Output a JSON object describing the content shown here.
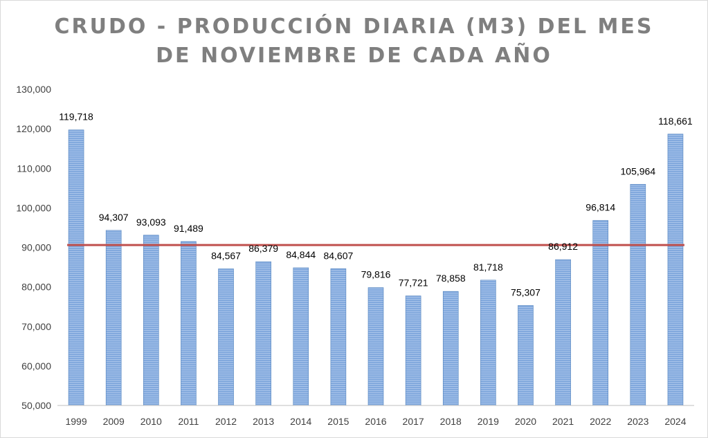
{
  "chart_data": {
    "type": "bar",
    "title_line1": "CRUDO - PRODUCCIÓN DIARIA (M3) DEL MES",
    "title_line2": "DE NOVIEMBRE DE CADA AÑO",
    "categories": [
      "1999",
      "2009",
      "2010",
      "2011",
      "2012",
      "2013",
      "2014",
      "2015",
      "2016",
      "2017",
      "2018",
      "2019",
      "2020",
      "2021",
      "2022",
      "2023",
      "2024"
    ],
    "values": [
      119718,
      94307,
      93093,
      91489,
      84567,
      86379,
      84844,
      84607,
      79816,
      77721,
      78858,
      81718,
      75307,
      86912,
      96814,
      105964,
      118661
    ],
    "value_labels": [
      "119,718",
      "94,307",
      "93,093",
      "91,489",
      "84,567",
      "86,379",
      "84,844",
      "84,607",
      "79,816",
      "77,721",
      "78,858",
      "81,718",
      "75,307",
      "86,912",
      "96,814",
      "105,964",
      "118,661"
    ],
    "y_ticks": [
      50000,
      60000,
      70000,
      80000,
      90000,
      100000,
      110000,
      120000,
      130000
    ],
    "y_tick_labels": [
      "50,000",
      "60,000",
      "70,000",
      "80,000",
      "90,000",
      "100,000",
      "110,000",
      "120,000",
      "130,000"
    ],
    "ylim": [
      50000,
      130000
    ],
    "average_line": 90600,
    "grid": false,
    "legend": "none",
    "colors": {
      "bar_fill": "#7ea6dc",
      "bar_stripe": "#a9c4ea",
      "bar_edge": "#4f81bd",
      "average_line": "#c0504d",
      "title": "#7f7f7f",
      "axis": "#bfbfbf"
    }
  }
}
